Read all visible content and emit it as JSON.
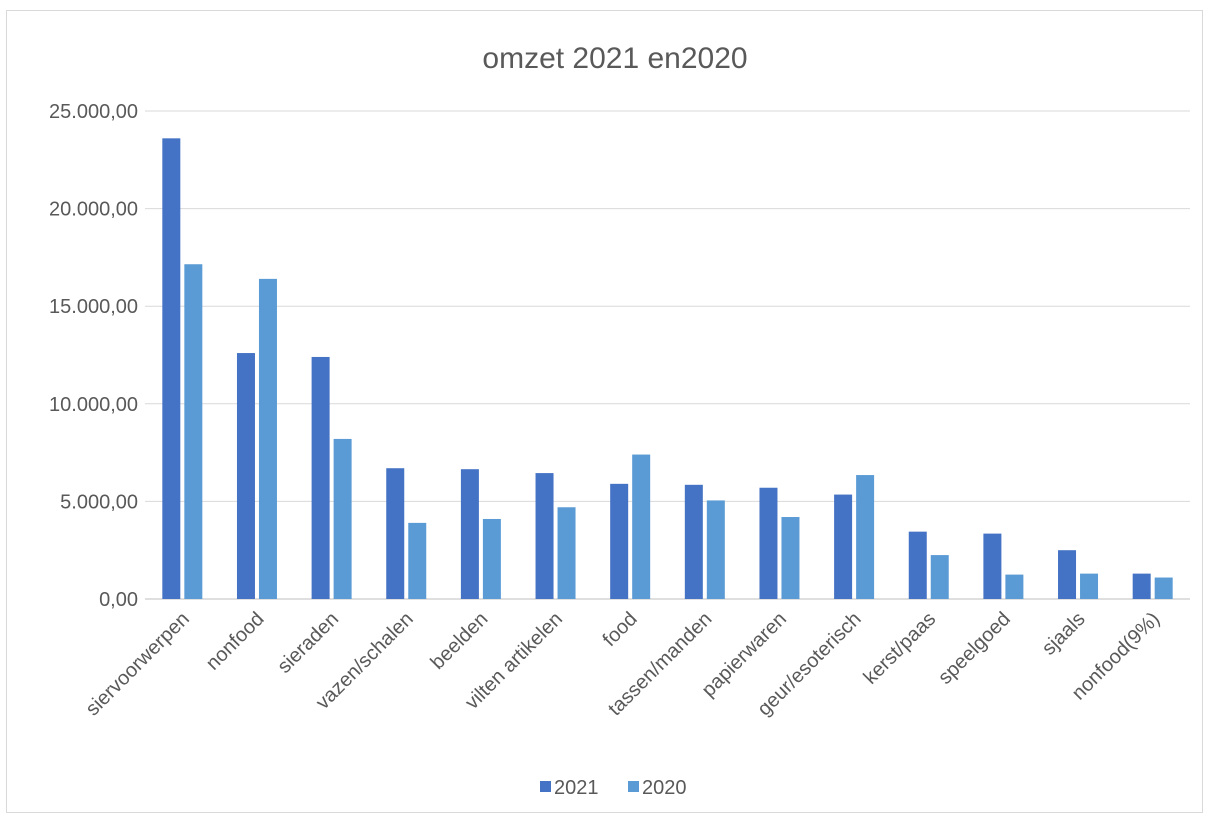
{
  "chart_data": {
    "type": "bar",
    "title": "omzet 2021 en2020",
    "categories": [
      "siervoorwerpen",
      "nonfood",
      "sieraden",
      "vazen/schalen",
      "beelden",
      "vilten artikelen",
      "food",
      "tassen/manden",
      "papierwaren",
      "geur/esoterisch",
      "kerst/paas",
      "speelgoed",
      "sjaals",
      "nonfood(9%)"
    ],
    "series": [
      {
        "name": "2021",
        "color": "#4472c4",
        "values": [
          23600,
          12600,
          12400,
          6700,
          6650,
          6450,
          5900,
          5850,
          5700,
          5350,
          3450,
          3350,
          2500,
          1300
        ]
      },
      {
        "name": "2020",
        "color": "#5b9bd5",
        "values": [
          17150,
          16400,
          8200,
          3900,
          4100,
          4700,
          7400,
          5050,
          4200,
          6350,
          2250,
          1250,
          1300,
          1100
        ]
      }
    ],
    "yticks": [
      "0,00",
      "5.000,00",
      "10.000,00",
      "15.000,00",
      "20.000,00",
      "25.000,00"
    ],
    "ylim": [
      0,
      25000
    ],
    "grid": true,
    "legend_position": "bottom"
  }
}
